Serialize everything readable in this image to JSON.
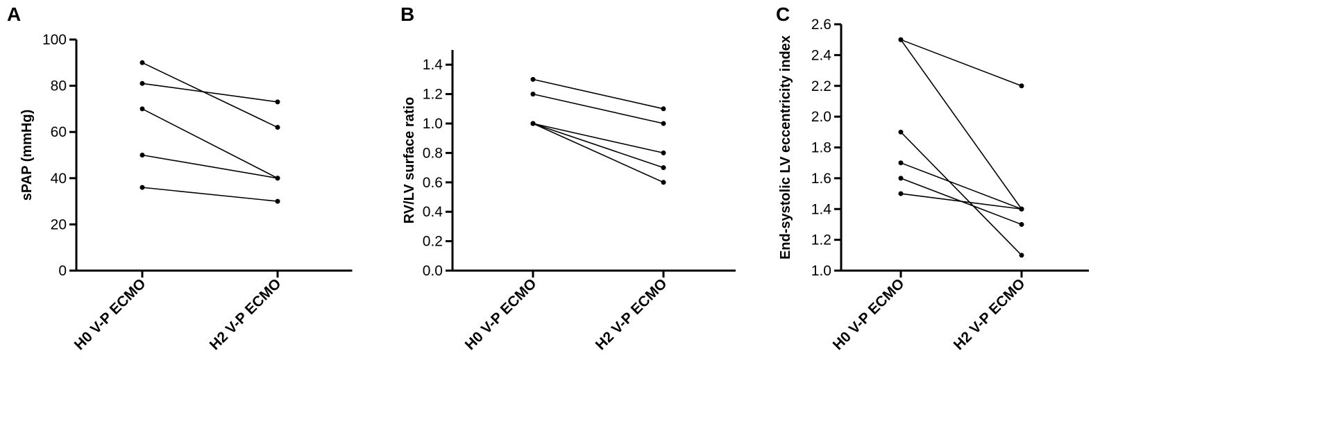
{
  "chart_data": [
    {
      "panel": "A",
      "type": "line",
      "categories": [
        "H0 V-P ECMO",
        "H2 V-P ECMO"
      ],
      "ylabel": "sPAP (mmHg)",
      "ylim": [
        0,
        100
      ],
      "yticks": [
        0,
        20,
        40,
        60,
        80,
        100
      ],
      "grid": false,
      "series": [
        {
          "values": [
            90,
            62
          ]
        },
        {
          "values": [
            81,
            73
          ]
        },
        {
          "values": [
            70,
            40
          ]
        },
        {
          "values": [
            50,
            40
          ]
        },
        {
          "values": [
            36,
            30
          ]
        }
      ]
    },
    {
      "panel": "B",
      "type": "line",
      "categories": [
        "H0 V-P ECMO",
        "H2 V-P ECMO"
      ],
      "ylabel": "RV/LV surface ratio",
      "ylim": [
        0,
        1.5
      ],
      "yticks": [
        "0.0",
        "0.2",
        "0.4",
        "0.6",
        "0.8",
        "1.0",
        "1.2",
        "1.4"
      ],
      "grid": false,
      "series": [
        {
          "values": [
            1.3,
            1.1
          ]
        },
        {
          "values": [
            1.2,
            1.0
          ]
        },
        {
          "values": [
            1.0,
            0.8
          ]
        },
        {
          "values": [
            1.0,
            0.7
          ]
        },
        {
          "values": [
            1.0,
            0.6
          ]
        }
      ]
    },
    {
      "panel": "C",
      "type": "line",
      "categories": [
        "H0 V-P ECMO",
        "H2 V-P ECMO"
      ],
      "ylabel": "End-systolic LV eccentricity index",
      "ylim": [
        1.0,
        2.6
      ],
      "yticks": [
        "1.0",
        "1.2",
        "1.4",
        "1.6",
        "1.8",
        "2.0",
        "2.2",
        "2.4",
        "2.6"
      ],
      "grid": false,
      "series": [
        {
          "values": [
            2.5,
            2.2
          ]
        },
        {
          "values": [
            2.5,
            1.4
          ]
        },
        {
          "values": [
            1.9,
            1.1
          ]
        },
        {
          "values": [
            1.7,
            1.4
          ]
        },
        {
          "values": [
            1.6,
            1.3
          ]
        },
        {
          "values": [
            1.5,
            1.4
          ]
        }
      ]
    }
  ]
}
